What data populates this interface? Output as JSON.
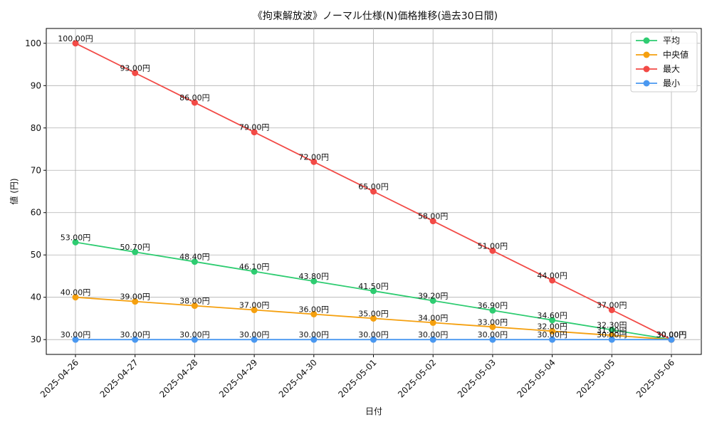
{
  "chart_data": {
    "type": "line",
    "title": "《拘束解放波》ノーマル仕様(N)価格推移(過去30日間)",
    "xlabel": "日付",
    "ylabel": "値 (円)",
    "categories": [
      "2025-04-26",
      "2025-04-27",
      "2025-04-28",
      "2025-04-29",
      "2025-04-30",
      "2025-05-01",
      "2025-05-02",
      "2025-05-03",
      "2025-05-04",
      "2025-05-05",
      "2025-05-06"
    ],
    "ylim": [
      26.5,
      103.5
    ],
    "yticks": [
      30,
      40,
      50,
      60,
      70,
      80,
      90,
      100
    ],
    "grid": true,
    "legend_position": "top-right",
    "value_suffix": "円",
    "series": [
      {
        "name": "平均",
        "color": "#2ecc71",
        "values": [
          53.0,
          50.7,
          48.4,
          46.1,
          43.8,
          41.5,
          39.2,
          36.9,
          34.6,
          32.3,
          30.0
        ]
      },
      {
        "name": "中央値",
        "color": "#f5a00f",
        "values": [
          40.0,
          39.0,
          38.0,
          37.0,
          36.0,
          35.0,
          34.0,
          33.0,
          32.0,
          31.0,
          30.0
        ]
      },
      {
        "name": "最大",
        "color": "#f24a46",
        "values": [
          100.0,
          93.0,
          86.0,
          79.0,
          72.0,
          65.0,
          58.0,
          51.0,
          44.0,
          37.0,
          30.0
        ]
      },
      {
        "name": "最小",
        "color": "#4a98f0",
        "values": [
          30.0,
          30.0,
          30.0,
          30.0,
          30.0,
          30.0,
          30.0,
          30.0,
          30.0,
          30.0,
          30.0
        ]
      }
    ]
  }
}
